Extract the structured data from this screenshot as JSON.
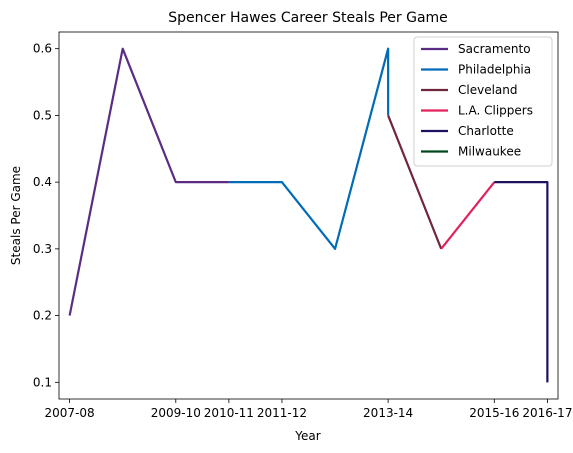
{
  "chart_data": {
    "type": "line",
    "title": "Spencer Hawes Career Steals Per Game",
    "xlabel": "Year",
    "ylabel": "Steals Per Game",
    "x_tick_labels": [
      "2007-08",
      "2009-10",
      "2010-11",
      "2011-12",
      "2013-14",
      "2015-16",
      "2016-17"
    ],
    "x_tick_index": [
      0,
      2,
      3,
      4,
      6,
      8,
      9
    ],
    "yticks": [
      0.1,
      0.2,
      0.3,
      0.4,
      0.5,
      0.6
    ],
    "xlim": [
      -0.2,
      9.2
    ],
    "ylim": [
      0.075,
      0.625
    ],
    "grid": false,
    "legend_position": "top-right",
    "series": [
      {
        "name": "Sacramento",
        "color": "#5b2c83",
        "points": [
          [
            0,
            0.2
          ],
          [
            1,
            0.6
          ],
          [
            2,
            0.4
          ],
          [
            3,
            0.4
          ]
        ]
      },
      {
        "name": "Philadelphia",
        "color": "#006bb6",
        "points": [
          [
            3,
            0.4
          ],
          [
            4,
            0.4
          ],
          [
            5,
            0.3
          ],
          [
            6,
            0.6
          ],
          [
            6,
            0.5
          ]
        ]
      },
      {
        "name": "Cleveland",
        "color": "#6f263d",
        "points": [
          [
            6,
            0.5
          ],
          [
            7,
            0.3
          ]
        ]
      },
      {
        "name": "L.A. Clippers",
        "color": "#e2225c",
        "points": [
          [
            7,
            0.3
          ],
          [
            8,
            0.4
          ]
        ]
      },
      {
        "name": "Charlotte",
        "color": "#1d1160",
        "points": [
          [
            8,
            0.4
          ],
          [
            9,
            0.4
          ],
          [
            9,
            0.1
          ]
        ]
      },
      {
        "name": "Milwaukee",
        "color": "#00471b",
        "points": []
      }
    ]
  }
}
